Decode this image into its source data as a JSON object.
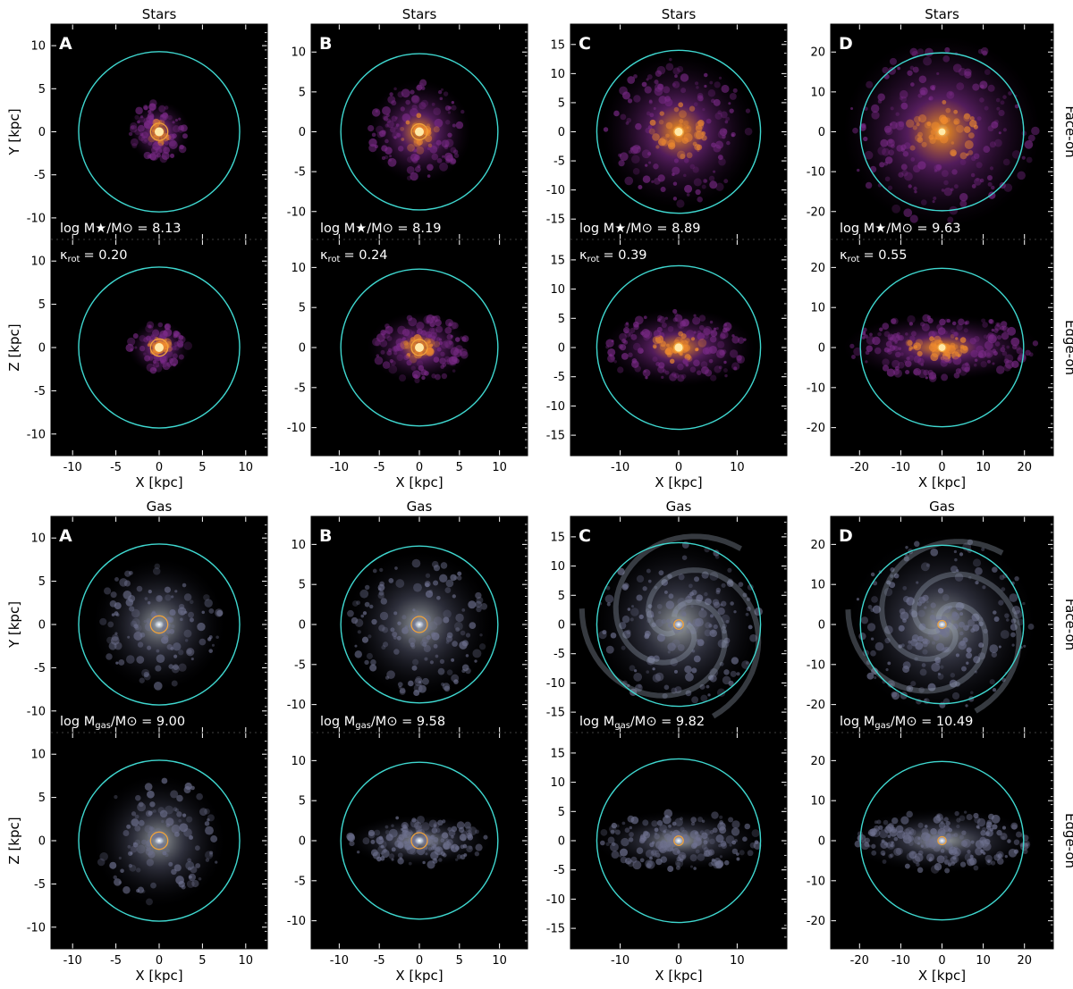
{
  "chart_data": {
    "type": "heatmap",
    "kind": "projected surface density maps",
    "axis_unit": "[kpc]",
    "row_labels": {
      "face_on": "Face-on",
      "edge_on": "Edge-on"
    },
    "galaxies": [
      {
        "id": "A",
        "half_extent": 12.5,
        "ticks": [
          -10,
          -5,
          0,
          5,
          10
        ],
        "virial_radius": 9.3,
        "inner_radius": 1.0,
        "stars": {
          "title": "Stars",
          "mass_label": "log M★/M⊙ = ",
          "log_mass": "8.13",
          "kappa_label": "κ",
          "kappa_sub": "rot",
          "kappa_value": "= 0.20",
          "kappa": 0.2
        },
        "gas": {
          "title": "Gas",
          "mass_label": "log M",
          "mass_sub": "gas",
          "mass_tail": "/M⊙ = ",
          "log_mass": "9.00"
        }
      },
      {
        "id": "B",
        "half_extent": 13.5,
        "ticks": [
          -10,
          -5,
          0,
          5,
          10
        ],
        "virial_radius": 9.8,
        "inner_radius": 1.0,
        "stars": {
          "title": "Stars",
          "mass_label": "log M★/M⊙ = ",
          "log_mass": "8.19",
          "kappa_label": "κ",
          "kappa_sub": "rot",
          "kappa_value": "= 0.24",
          "kappa": 0.24
        },
        "gas": {
          "title": "Gas",
          "mass_label": "log M",
          "mass_sub": "gas",
          "mass_tail": "/M⊙ = ",
          "log_mass": "9.58"
        }
      },
      {
        "id": "C",
        "half_extent": 18.5,
        "ticks": [
          -15,
          -10,
          -5,
          0,
          5,
          10,
          15
        ],
        "x_ticks": [
          -10,
          0,
          10
        ],
        "virial_radius": 14.0,
        "inner_radius": 0.8,
        "stars": {
          "title": "Stars",
          "mass_label": "log M★/M⊙ = ",
          "log_mass": "8.89",
          "kappa_label": "κ",
          "kappa_sub": "rot",
          "kappa_value": "= 0.39",
          "kappa": 0.39
        },
        "gas": {
          "title": "Gas",
          "mass_label": "log M",
          "mass_sub": "gas",
          "mass_tail": "/M⊙ = ",
          "log_mass": "9.82"
        }
      },
      {
        "id": "D",
        "half_extent": 27.0,
        "ticks": [
          -20,
          -10,
          0,
          10,
          20
        ],
        "virial_radius": 19.8,
        "inner_radius": 1.0,
        "stars": {
          "title": "Stars",
          "mass_label": "log M★/M⊙ = ",
          "log_mass": "9.63",
          "kappa_label": "κ",
          "kappa_sub": "rot",
          "kappa_value": "= 0.55",
          "kappa": 0.55
        },
        "gas": {
          "title": "Gas",
          "mass_label": "log M",
          "mass_sub": "gas",
          "mass_tail": "/M⊙ = ",
          "log_mass": "10.49"
        }
      }
    ],
    "x_label": "X [kpc]",
    "y_label_face": "Y [kpc]",
    "y_label_edge": "Z [kpc]",
    "colors": {
      "background": "#000000",
      "virial_circle": "#3fd8d0",
      "inner_circle": "#f0a23a",
      "text": "#ffffff",
      "star_core": "#ffe9a8",
      "star_mid": "#f08b2e",
      "star_outer": "#7a2a87",
      "gas_core": "#e8f1f0",
      "gas_outer": "#6f7290"
    }
  }
}
